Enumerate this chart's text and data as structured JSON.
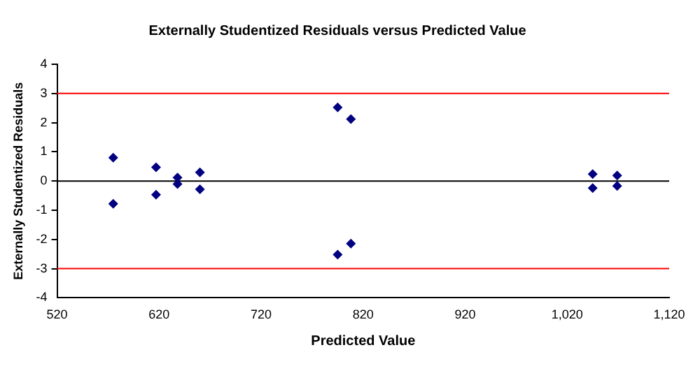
{
  "chart_data": {
    "type": "scatter",
    "title": "Externally Studentized Residuals versus Predicted Value",
    "xlabel": "Predicted Value",
    "ylabel": "Externally Studentized Residuals",
    "series": [
      {
        "color": "#000080",
        "x": [
          575,
          575,
          617,
          617,
          638,
          638,
          660,
          660,
          795,
          795,
          808,
          808,
          1045,
          1045,
          1069,
          1069
        ],
        "values": [
          0.8,
          -0.78,
          0.47,
          -0.47,
          0.12,
          -0.1,
          0.3,
          -0.28,
          2.52,
          -2.52,
          2.12,
          -2.14,
          0.24,
          -0.24,
          0.19,
          -0.17
        ]
      }
    ],
    "xlim": [
      520,
      1120
    ],
    "xticks": [
      520,
      620,
      720,
      820,
      920,
      {
        "value": 1020,
        "label": "1,020"
      },
      {
        "value": 1120,
        "label": "1,120"
      }
    ],
    "ylim": [
      -4,
      4
    ],
    "yticks": [
      -4,
      -3,
      -2,
      -1,
      0,
      1,
      2,
      3,
      4
    ],
    "ref_lines": [
      {
        "axis": "y",
        "value": 3,
        "color": "#ff0000"
      },
      {
        "axis": "y",
        "value": -3,
        "color": "#ff0000"
      },
      {
        "axis": "y",
        "value": 0,
        "color": "#000000"
      }
    ],
    "marker": "diamond",
    "grid": false,
    "legend": false
  }
}
